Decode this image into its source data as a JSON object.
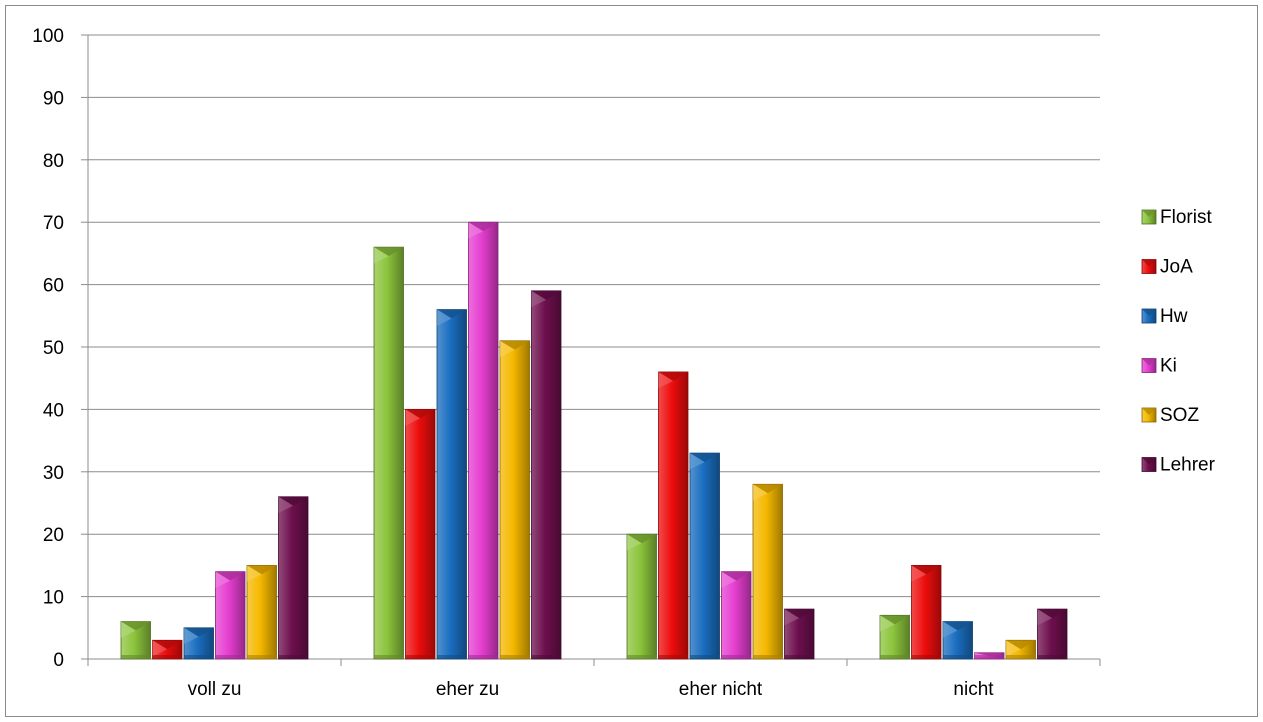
{
  "chart_data": {
    "type": "bar",
    "title": "",
    "xlabel": "",
    "ylabel": "",
    "ylim": [
      0,
      100
    ],
    "yticks": [
      0,
      10,
      20,
      30,
      40,
      50,
      60,
      70,
      80,
      90,
      100
    ],
    "grid": true,
    "legend_position": "right",
    "categories": [
      "voll zu",
      "eher zu",
      "eher nicht",
      "nicht"
    ],
    "series": [
      {
        "name": "Florist",
        "color": "#8cc43c",
        "values": [
          6,
          66,
          20,
          7
        ]
      },
      {
        "name": "JoA",
        "color": "#ee0d0d",
        "values": [
          3,
          40,
          46,
          15
        ]
      },
      {
        "name": "Hw",
        "color": "#1a6ec0",
        "values": [
          5,
          56,
          33,
          6
        ]
      },
      {
        "name": "Ki",
        "color": "#e53ed0",
        "values": [
          14,
          70,
          14,
          1
        ]
      },
      {
        "name": "SOZ",
        "color": "#f5b800",
        "values": [
          15,
          51,
          28,
          3
        ]
      },
      {
        "name": "Lehrer",
        "color": "#6e0f4e",
        "values": [
          26,
          59,
          8,
          8
        ]
      }
    ]
  }
}
